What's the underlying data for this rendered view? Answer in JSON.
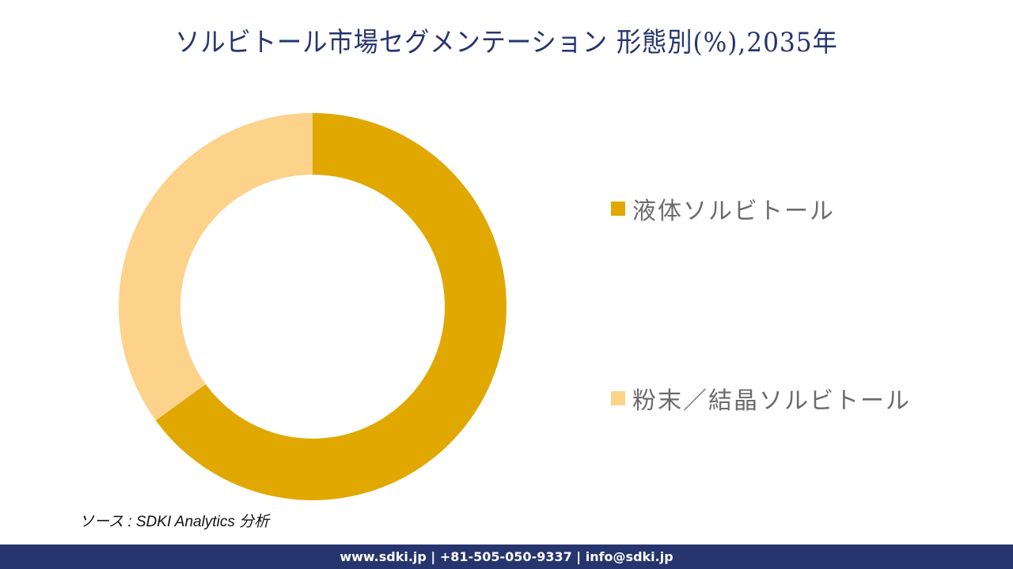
{
  "title": "ソルビトール市場セグメンテーション 形態別(%),2035年",
  "chart_data": {
    "type": "pie",
    "subtype": "donut",
    "title": "ソルビトール市場セグメンテーション 形態別(%),2035年",
    "categories": [
      "液体ソルビトール",
      "粉末／結晶ソルビトール"
    ],
    "values": [
      65,
      35
    ],
    "colors": [
      "#e0a800",
      "#fdd28a"
    ],
    "legend_position": "right",
    "start_angle_deg": 0,
    "direction": "clockwise"
  },
  "legend": {
    "items": [
      {
        "label": "液体ソルビトール",
        "color": "#e0a800"
      },
      {
        "label": "粉末／結晶ソルビトール",
        "color": "#fdd28a"
      }
    ]
  },
  "source": "ソース : SDKI Analytics  分析",
  "footer": {
    "text": "www.sdki.jp | +81-505-050-9337 | info@sdki.jp",
    "background": "#26356e"
  }
}
